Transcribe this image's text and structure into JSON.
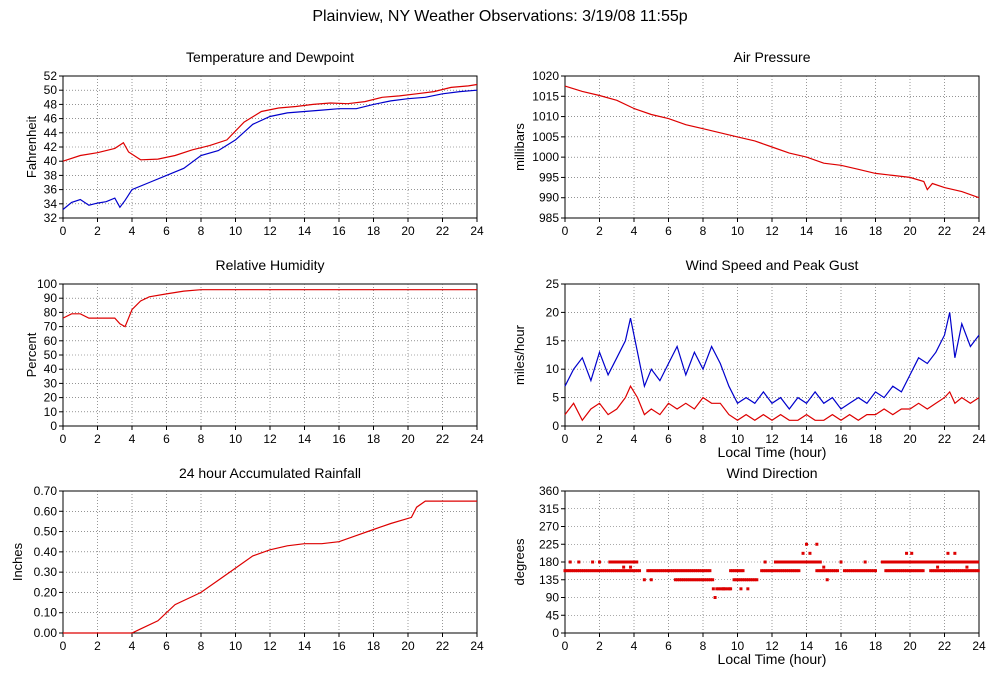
{
  "page": {
    "title": "Plainview, NY Weather Observations: 3/19/08 11:55p"
  },
  "chart_data": [
    {
      "id": "temp",
      "type": "line",
      "title": "Temperature and Dewpoint",
      "xlabel": "",
      "ylabel": "Fahrenheit",
      "xlim": [
        0,
        24
      ],
      "ylim": [
        32,
        52
      ],
      "xticks": [
        0,
        2,
        4,
        6,
        8,
        10,
        12,
        14,
        16,
        18,
        20,
        22,
        24
      ],
      "yticks": [
        32,
        34,
        36,
        38,
        40,
        42,
        44,
        46,
        48,
        50,
        52
      ],
      "grid": true,
      "series": [
        {
          "color": "#dd0000",
          "x": [
            0,
            1,
            2,
            3,
            3.5,
            3.8,
            4.5,
            5.5,
            6.5,
            7.5,
            8.5,
            9.5,
            10.5,
            11.5,
            12.5,
            13.5,
            14.5,
            15.5,
            16.5,
            17.5,
            18.5,
            19.5,
            20.5,
            21.5,
            22.5,
            23.5,
            24
          ],
          "values": [
            40,
            40.8,
            41.2,
            41.8,
            42.6,
            41.3,
            40.2,
            40.3,
            40.8,
            41.6,
            42.2,
            43.0,
            45.5,
            47.0,
            47.5,
            47.7,
            48.0,
            48.2,
            48.1,
            48.4,
            49.0,
            49.2,
            49.5,
            49.8,
            50.4,
            50.6,
            50.8
          ]
        },
        {
          "color": "#0000cc",
          "x": [
            0,
            0.5,
            1,
            1.5,
            2,
            2.5,
            3,
            3.3,
            3.6,
            4,
            5,
            6,
            7,
            8,
            9,
            10,
            11,
            12,
            13,
            14,
            15,
            16,
            17,
            18,
            19,
            20,
            21,
            22,
            23,
            24
          ],
          "values": [
            33.2,
            34.2,
            34.6,
            33.8,
            34.1,
            34.3,
            34.8,
            33.5,
            34.5,
            36.0,
            37.0,
            38.0,
            39.0,
            40.8,
            41.5,
            43.0,
            45.2,
            46.3,
            46.8,
            47.0,
            47.2,
            47.4,
            47.4,
            48.0,
            48.5,
            48.8,
            49.0,
            49.5,
            49.8,
            50.0
          ]
        }
      ]
    },
    {
      "id": "pressure",
      "type": "line",
      "title": "Air Pressure",
      "xlabel": "",
      "ylabel": "millibars",
      "xlim": [
        0,
        24
      ],
      "ylim": [
        985,
        1020
      ],
      "xticks": [
        0,
        2,
        4,
        6,
        8,
        10,
        12,
        14,
        16,
        18,
        20,
        22,
        24
      ],
      "yticks": [
        985,
        990,
        995,
        1000,
        1005,
        1010,
        1015,
        1020
      ],
      "grid": true,
      "series": [
        {
          "color": "#dd0000",
          "x": [
            0,
            1,
            2,
            3,
            4,
            5,
            6,
            7,
            8,
            9,
            10,
            11,
            12,
            13,
            14,
            15,
            16,
            17,
            18,
            19,
            20,
            20.8,
            21.0,
            21.3,
            22,
            23,
            24
          ],
          "values": [
            1017.5,
            1016.2,
            1015.2,
            1014.0,
            1012.0,
            1010.5,
            1009.5,
            1008.0,
            1007.0,
            1006.0,
            1005.0,
            1004.0,
            1002.5,
            1001.0,
            1000.0,
            998.5,
            998.0,
            997.0,
            996.0,
            995.5,
            995.0,
            994.0,
            992.0,
            993.5,
            992.5,
            991.5,
            990.0
          ]
        }
      ]
    },
    {
      "id": "humidity",
      "type": "line",
      "title": "Relative Humidity",
      "xlabel": "",
      "ylabel": "Percent",
      "xlim": [
        0,
        24
      ],
      "ylim": [
        0,
        100
      ],
      "xticks": [
        0,
        2,
        4,
        6,
        8,
        10,
        12,
        14,
        16,
        18,
        20,
        22,
        24
      ],
      "yticks": [
        0,
        10,
        20,
        30,
        40,
        50,
        60,
        70,
        80,
        90,
        100
      ],
      "grid": true,
      "series": [
        {
          "color": "#dd0000",
          "x": [
            0,
            0.5,
            1,
            1.5,
            2,
            2.5,
            3,
            3.3,
            3.6,
            4,
            4.5,
            5,
            6,
            7,
            8,
            10,
            12,
            14,
            16,
            18,
            20,
            22,
            24
          ],
          "values": [
            76,
            79,
            79,
            76,
            76,
            76,
            76,
            72,
            70,
            82,
            88,
            91,
            93,
            95,
            96,
            96,
            96,
            96,
            96,
            96,
            96,
            96,
            96
          ]
        }
      ]
    },
    {
      "id": "wind",
      "type": "line",
      "title": "Wind Speed and Peak Gust",
      "xlabel": "Local Time (hour)",
      "ylabel": "miles/hour",
      "xlim": [
        0,
        24
      ],
      "ylim": [
        0,
        25
      ],
      "xticks": [
        0,
        2,
        4,
        6,
        8,
        10,
        12,
        14,
        16,
        18,
        20,
        22,
        24
      ],
      "yticks": [
        0,
        5,
        10,
        15,
        20,
        25
      ],
      "grid": true,
      "series": [
        {
          "color": "#0000cc",
          "x": [
            0,
            0.5,
            1,
            1.5,
            2,
            2.5,
            3,
            3.5,
            3.8,
            4.2,
            4.6,
            5,
            5.5,
            6,
            6.5,
            7,
            7.5,
            8,
            8.5,
            9,
            9.5,
            10,
            10.5,
            11,
            11.5,
            12,
            12.5,
            13,
            13.5,
            14,
            14.5,
            15,
            15.5,
            16,
            16.5,
            17,
            17.5,
            18,
            18.5,
            19,
            19.5,
            20,
            20.5,
            21,
            21.5,
            22,
            22.3,
            22.6,
            23,
            23.5,
            24
          ],
          "values": [
            7,
            10,
            12,
            8,
            13,
            9,
            12,
            15,
            19,
            13,
            7,
            10,
            8,
            11,
            14,
            9,
            13,
            10,
            14,
            11,
            7,
            4,
            5,
            4,
            6,
            4,
            5,
            3,
            5,
            4,
            6,
            4,
            5,
            3,
            4,
            5,
            4,
            6,
            5,
            7,
            6,
            9,
            12,
            11,
            13,
            16,
            20,
            12,
            18,
            14,
            16
          ]
        },
        {
          "color": "#dd0000",
          "x": [
            0,
            0.5,
            1,
            1.5,
            2,
            2.5,
            3,
            3.5,
            3.8,
            4.2,
            4.6,
            5,
            5.5,
            6,
            6.5,
            7,
            7.5,
            8,
            8.5,
            9,
            9.5,
            10,
            10.5,
            11,
            11.5,
            12,
            12.5,
            13,
            13.5,
            14,
            14.5,
            15,
            15.5,
            16,
            16.5,
            17,
            17.5,
            18,
            18.5,
            19,
            19.5,
            20,
            20.5,
            21,
            21.5,
            22,
            22.3,
            22.6,
            23,
            23.5,
            24
          ],
          "values": [
            2,
            4,
            1,
            3,
            4,
            2,
            3,
            5,
            7,
            5,
            2,
            3,
            2,
            4,
            3,
            4,
            3,
            5,
            4,
            4,
            2,
            1,
            2,
            1,
            2,
            1,
            2,
            1,
            1,
            2,
            1,
            1,
            2,
            1,
            2,
            1,
            2,
            2,
            3,
            2,
            3,
            3,
            4,
            3,
            4,
            5,
            6,
            4,
            5,
            4,
            5
          ]
        }
      ]
    },
    {
      "id": "rain",
      "type": "line",
      "title": "24 hour Accumulated Rainfall",
      "xlabel": "",
      "ylabel": "Inches",
      "xlim": [
        0,
        24
      ],
      "ylim": [
        0,
        0.7
      ],
      "xticks": [
        0,
        2,
        4,
        6,
        8,
        10,
        12,
        14,
        16,
        18,
        20,
        22,
        24
      ],
      "yticks": [
        0,
        0.1,
        0.2,
        0.3,
        0.4,
        0.5,
        0.6,
        0.7
      ],
      "ytick_labels": [
        "0.00",
        "0.10",
        "0.20",
        "0.30",
        "0.40",
        "0.50",
        "0.60",
        "0.70"
      ],
      "grid": true,
      "series": [
        {
          "color": "#dd0000",
          "x": [
            0,
            4.0,
            4.5,
            5.5,
            6.5,
            7.5,
            8,
            9,
            10,
            11,
            12,
            13,
            14,
            15,
            16,
            17,
            18,
            19,
            20.2,
            20.5,
            21,
            22,
            23,
            24
          ],
          "values": [
            0,
            0,
            0.02,
            0.06,
            0.14,
            0.18,
            0.2,
            0.26,
            0.32,
            0.38,
            0.41,
            0.43,
            0.44,
            0.44,
            0.45,
            0.48,
            0.51,
            0.54,
            0.57,
            0.62,
            0.65,
            0.65,
            0.65,
            0.65
          ]
        }
      ]
    },
    {
      "id": "direction",
      "type": "scatter",
      "title": "Wind Direction",
      "xlabel": "Local Time (hour)",
      "ylabel": "degrees",
      "xlim": [
        0,
        24
      ],
      "ylim": [
        0,
        360
      ],
      "xticks": [
        0,
        2,
        4,
        6,
        8,
        10,
        12,
        14,
        16,
        18,
        20,
        22,
        24
      ],
      "yticks": [
        0,
        45,
        90,
        135,
        180,
        225,
        270,
        315,
        360
      ],
      "grid": true,
      "series": [
        {
          "color": "#dd0000",
          "bands": [
            {
              "y": 158,
              "x_ranges": [
                [
                  0,
                  4.4
                ],
                [
                  4.8,
                  8.4
                ],
                [
                  9.6,
                  10.4
                ],
                [
                  11.4,
                  13.6
                ],
                [
                  14.6,
                  15.8
                ],
                [
                  16.2,
                  18.0
                ],
                [
                  18.6,
                  20.8
                ],
                [
                  21.2,
                  24
                ]
              ]
            },
            {
              "y": 180,
              "x_ranges": [
                [
                  2.6,
                  4.2
                ],
                [
                  12.2,
                  14.8
                ],
                [
                  18.4,
                  24
                ]
              ]
            },
            {
              "y": 135,
              "x_ranges": [
                [
                  6.4,
                  8.6
                ],
                [
                  9.8,
                  11.2
                ]
              ]
            },
            {
              "y": 112,
              "x_ranges": [
                [
                  8.8,
                  9.6
                ]
              ]
            }
          ],
          "points": [
            [
              0.3,
              180
            ],
            [
              0.8,
              180
            ],
            [
              1.6,
              180
            ],
            [
              2.0,
              180
            ],
            [
              3.4,
              167
            ],
            [
              3.8,
              167
            ],
            [
              4.6,
              135
            ],
            [
              5.0,
              135
            ],
            [
              8.6,
              112
            ],
            [
              8.7,
              90
            ],
            [
              9.2,
              112
            ],
            [
              9.6,
              112
            ],
            [
              10.2,
              112
            ],
            [
              10.6,
              112
            ],
            [
              11.6,
              180
            ],
            [
              12.6,
              180
            ],
            [
              13.2,
              180
            ],
            [
              13.8,
              202
            ],
            [
              14.0,
              225
            ],
            [
              14.2,
              202
            ],
            [
              14.6,
              225
            ],
            [
              14.8,
              180
            ],
            [
              15.0,
              167
            ],
            [
              15.2,
              135
            ],
            [
              16.0,
              180
            ],
            [
              17.4,
              180
            ],
            [
              19.8,
              202
            ],
            [
              20.1,
              202
            ],
            [
              21.6,
              167
            ],
            [
              22.2,
              202
            ],
            [
              22.6,
              202
            ],
            [
              23.3,
              167
            ]
          ]
        }
      ]
    }
  ]
}
